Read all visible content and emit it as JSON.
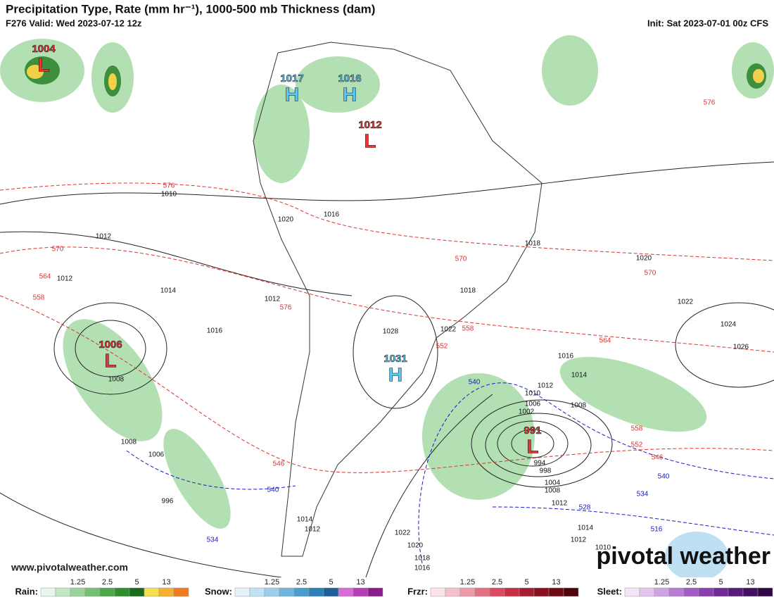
{
  "header": {
    "title": "Precipitation Type, Rate (mm hr⁻¹), 1000-500 mb Thickness (dam)",
    "valid": "F276 Valid: Wed 2023-07-12 12z",
    "init": "Init: Sat 2023-07-01 00z CFS"
  },
  "centers": [
    {
      "type": "L",
      "value": 1004
    },
    {
      "type": "H",
      "value": 1017
    },
    {
      "type": "H",
      "value": 1016
    },
    {
      "type": "L",
      "value": 1012
    },
    {
      "type": "L",
      "value": 1006
    },
    {
      "type": "H",
      "value": 1031
    },
    {
      "type": "L",
      "value": 991
    }
  ],
  "isobar_labels": [
    1010,
    1012,
    1012,
    1014,
    1016,
    1008,
    1016,
    1020,
    1018,
    1020,
    1012,
    1018,
    1022,
    1024,
    1026,
    1028,
    1022,
    1016,
    1014,
    1012,
    1010,
    1008,
    1006,
    1002,
    1008,
    1006,
    996,
    994,
    998,
    1004,
    1008,
    1012,
    1014,
    1012,
    1014,
    1012,
    1022,
    1020,
    1018,
    1016,
    1010
  ],
  "thickness_labels_red": [
    576,
    570,
    564,
    558,
    576,
    570,
    570,
    576,
    558,
    552,
    564,
    558,
    552,
    546,
    546
  ],
  "thickness_labels_blue": [
    540,
    540,
    534,
    540,
    534,
    528,
    516
  ],
  "watermark": "www.pivotalweather.com",
  "brand": "pivotal weather",
  "legend": [
    {
      "name": "Rain:",
      "ticks": [
        1.25,
        2.5,
        5,
        13
      ]
    },
    {
      "name": "Snow:",
      "ticks": [
        1.25,
        2.5,
        5,
        13
      ]
    },
    {
      "name": "Frzr:",
      "ticks": [
        1.25,
        2.5,
        5,
        13
      ]
    },
    {
      "name": "Sleet:",
      "ticks": [
        1.25,
        2.5,
        5,
        13
      ]
    }
  ]
}
